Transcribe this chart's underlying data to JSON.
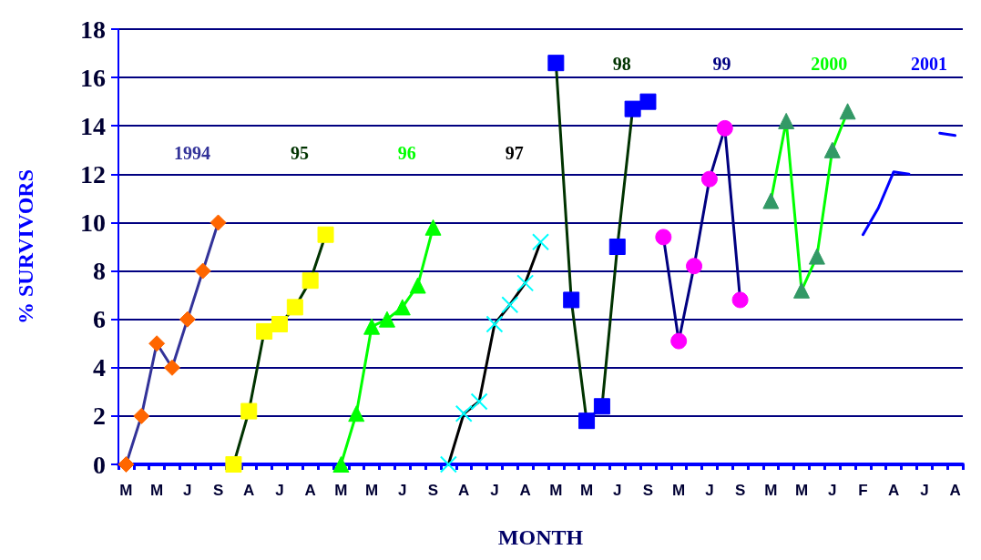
{
  "chart_data": {
    "type": "line",
    "xlabel": "MONTH",
    "ylabel": "% SURVIVORS",
    "categories": [
      "M",
      null,
      "M",
      null,
      "J",
      null,
      "S",
      null,
      "A",
      null,
      "J",
      null,
      "A",
      null,
      "M",
      null,
      "M",
      null,
      "J",
      null,
      "S",
      null,
      "A",
      null,
      "J",
      null,
      "A",
      null,
      "M",
      null,
      "M",
      null,
      "J",
      null,
      "S",
      null,
      "M",
      null,
      "J",
      null,
      "S",
      null,
      "M",
      null,
      "M",
      null,
      "J",
      null,
      "F",
      null,
      "A",
      null,
      "J",
      null,
      "A"
    ],
    "ylim": [
      0,
      18
    ],
    "yticks": [
      0,
      2,
      4,
      6,
      8,
      10,
      12,
      14,
      16,
      18
    ],
    "grid": "y",
    "legend": false,
    "line_style": "solid",
    "series": [
      {
        "name": "1994",
        "color": "#333399",
        "marker": "diamond",
        "values": [
          0,
          2,
          5,
          4,
          6,
          8,
          10,
          null,
          null,
          null,
          null,
          null,
          null,
          null,
          null,
          null,
          null,
          null,
          null,
          null,
          null,
          null,
          null,
          null,
          null,
          null,
          null,
          null,
          null,
          null,
          null,
          null,
          null,
          null,
          null,
          null,
          null,
          null,
          null,
          null,
          null,
          null,
          null,
          null,
          null,
          null,
          null,
          null,
          null,
          null,
          null,
          null,
          null,
          null,
          null
        ],
        "colors": [
          "#ff6600",
          "#ff6600",
          "#ff6600",
          "#ff6600",
          "#ff6600",
          "#ff6600",
          "#ff6600",
          null,
          null,
          null,
          null,
          null,
          null,
          null,
          null,
          null,
          null,
          null,
          null,
          null,
          null,
          null,
          null,
          null,
          null,
          null,
          null,
          null,
          null,
          null,
          null,
          null,
          null,
          null,
          null,
          null,
          null,
          null,
          null,
          null,
          null,
          null,
          null,
          null,
          null,
          null,
          null,
          null,
          null,
          null,
          null,
          null,
          null,
          null,
          null
        ]
      },
      {
        "name": "95",
        "color": "#003300",
        "marker": "square",
        "values": [
          null,
          null,
          null,
          null,
          null,
          null,
          null,
          0,
          2.2,
          5.5,
          5.8,
          6.5,
          7.6,
          9.5,
          null,
          null,
          null,
          null,
          null,
          null,
          null,
          null,
          null,
          null,
          null,
          null,
          null,
          null,
          null,
          null,
          null,
          null,
          null,
          null,
          null,
          null,
          null,
          null,
          null,
          null,
          null,
          null,
          null,
          null,
          null,
          null,
          null,
          null,
          null,
          null,
          null,
          null,
          null,
          null,
          null
        ],
        "colors": [
          null,
          null,
          null,
          null,
          null,
          null,
          null,
          "#ffff00",
          "#ffff00",
          "#ffff00",
          "#ffff00",
          "#ffff00",
          "#ffff00",
          "#ffff00",
          null,
          null,
          null,
          null,
          null,
          null,
          null,
          null,
          null,
          null,
          null,
          null,
          null,
          null,
          null,
          null,
          null,
          null,
          null,
          null,
          null,
          null,
          null,
          null,
          null,
          null,
          null,
          null,
          null,
          null,
          null,
          null,
          null,
          null,
          null,
          null,
          null,
          null,
          null,
          null,
          null
        ]
      },
      {
        "name": "96",
        "color": "#00ff00",
        "marker": "triangle",
        "values": [
          null,
          null,
          null,
          null,
          null,
          null,
          null,
          null,
          null,
          null,
          null,
          null,
          null,
          null,
          0,
          2.1,
          5.7,
          6.0,
          6.5,
          7.4,
          9.8,
          null,
          null,
          null,
          null,
          null,
          null,
          null,
          null,
          null,
          null,
          null,
          null,
          null,
          null,
          null,
          null,
          null,
          null,
          null,
          null,
          null,
          null,
          null,
          null,
          null,
          null,
          null,
          null,
          null,
          null,
          null,
          null,
          null,
          null
        ]
      },
      {
        "name": "97",
        "color": "#000000",
        "marker": "cross",
        "values": [
          null,
          null,
          null,
          null,
          null,
          null,
          null,
          null,
          null,
          null,
          null,
          null,
          null,
          null,
          null,
          null,
          null,
          null,
          null,
          null,
          null,
          0,
          2.1,
          2.6,
          5.8,
          6.6,
          7.5,
          9.2,
          null,
          null,
          null,
          null,
          null,
          null,
          null,
          null,
          null,
          null,
          null,
          null,
          null,
          null,
          null,
          null,
          null,
          null,
          null,
          null,
          null,
          null,
          null,
          null,
          null,
          null,
          null
        ],
        "colors": [
          null,
          null,
          null,
          null,
          null,
          null,
          null,
          null,
          null,
          null,
          null,
          null,
          null,
          null,
          null,
          null,
          null,
          null,
          null,
          null,
          null,
          "#00ffff",
          "#00ffff",
          "#00ffff",
          "#00ffff",
          "#00ffff",
          "#00ffff",
          "#00ffff",
          null,
          null,
          null,
          null,
          null,
          null,
          null,
          null,
          null,
          null,
          null,
          null,
          null,
          null,
          null,
          null,
          null,
          null,
          null,
          null,
          null,
          null,
          null,
          null,
          null,
          null,
          null
        ]
      },
      {
        "name": "98",
        "color": "#003300",
        "marker": "square",
        "values": [
          null,
          null,
          null,
          null,
          null,
          null,
          null,
          null,
          null,
          null,
          null,
          null,
          null,
          null,
          null,
          null,
          null,
          null,
          null,
          null,
          null,
          null,
          null,
          null,
          null,
          null,
          null,
          null,
          16.6,
          6.8,
          1.8,
          2.4,
          9.0,
          14.7,
          15.0,
          null,
          null,
          null,
          null,
          null,
          null,
          null,
          null,
          null,
          null,
          null,
          null,
          null,
          null,
          null,
          null,
          null,
          null,
          null,
          null
        ],
        "colors": [
          null,
          null,
          null,
          null,
          null,
          null,
          null,
          null,
          null,
          null,
          null,
          null,
          null,
          null,
          null,
          null,
          null,
          null,
          null,
          null,
          null,
          null,
          null,
          null,
          null,
          null,
          null,
          null,
          "#0000ff",
          "#0000ff",
          "#0000ff",
          "#0000ff",
          "#0000ff",
          "#0000ff",
          "#0000ff",
          null,
          null,
          null,
          null,
          null,
          null,
          null,
          null,
          null,
          null,
          null,
          null,
          null,
          null,
          null,
          null,
          null,
          null,
          null,
          null
        ]
      },
      {
        "name": "99",
        "color": "#000080",
        "marker": "circle",
        "values": [
          null,
          null,
          null,
          null,
          null,
          null,
          null,
          null,
          null,
          null,
          null,
          null,
          null,
          null,
          null,
          null,
          null,
          null,
          null,
          null,
          null,
          null,
          null,
          null,
          null,
          null,
          null,
          null,
          null,
          null,
          null,
          null,
          null,
          null,
          null,
          9.4,
          5.1,
          8.2,
          11.8,
          13.9,
          6.8,
          null,
          null,
          null,
          null,
          null,
          null,
          null,
          null,
          null,
          null,
          null,
          null,
          null,
          null
        ],
        "colors": [
          null,
          null,
          null,
          null,
          null,
          null,
          null,
          null,
          null,
          null,
          null,
          null,
          null,
          null,
          null,
          null,
          null,
          null,
          null,
          null,
          null,
          null,
          null,
          null,
          null,
          null,
          null,
          null,
          null,
          null,
          null,
          null,
          null,
          null,
          null,
          "#ff00ff",
          "#ff00ff",
          "#ff00ff",
          "#ff00ff",
          "#ff00ff",
          "#ff00ff",
          null,
          null,
          null,
          null,
          null,
          null,
          null,
          null,
          null,
          null,
          null,
          null,
          null,
          null
        ]
      },
      {
        "name": "2000",
        "color": "#00ff00",
        "marker": "triangle",
        "values": [
          null,
          null,
          null,
          null,
          null,
          null,
          null,
          null,
          null,
          null,
          null,
          null,
          null,
          null,
          null,
          null,
          null,
          null,
          null,
          null,
          null,
          null,
          null,
          null,
          null,
          null,
          null,
          null,
          null,
          null,
          null,
          null,
          null,
          null,
          null,
          null,
          null,
          null,
          null,
          null,
          null,
          null,
          10.9,
          14.2,
          7.2,
          8.6,
          13.0,
          14.6,
          null,
          null,
          null,
          null,
          null,
          null,
          null
        ],
        "colors": [
          null,
          null,
          null,
          null,
          null,
          null,
          null,
          null,
          null,
          null,
          null,
          null,
          null,
          null,
          null,
          null,
          null,
          null,
          null,
          null,
          null,
          null,
          null,
          null,
          null,
          null,
          null,
          null,
          null,
          null,
          null,
          null,
          null,
          null,
          null,
          null,
          null,
          null,
          null,
          null,
          null,
          null,
          "#339966",
          "#339966",
          "#339966",
          "#339966",
          "#339966",
          "#339966",
          null,
          null,
          null,
          null,
          null,
          null,
          null
        ]
      },
      {
        "name": "2001",
        "color": "#0000ff",
        "marker": "none",
        "values": [
          null,
          null,
          null,
          null,
          null,
          null,
          null,
          null,
          null,
          null,
          null,
          null,
          null,
          null,
          null,
          null,
          null,
          null,
          null,
          null,
          null,
          null,
          null,
          null,
          null,
          null,
          null,
          null,
          null,
          null,
          null,
          null,
          null,
          null,
          null,
          null,
          null,
          null,
          null,
          null,
          null,
          null,
          null,
          null,
          null,
          null,
          null,
          null,
          9.5,
          10.6,
          12.1,
          12.0,
          null,
          13.7,
          13.6
        ]
      }
    ]
  }
}
